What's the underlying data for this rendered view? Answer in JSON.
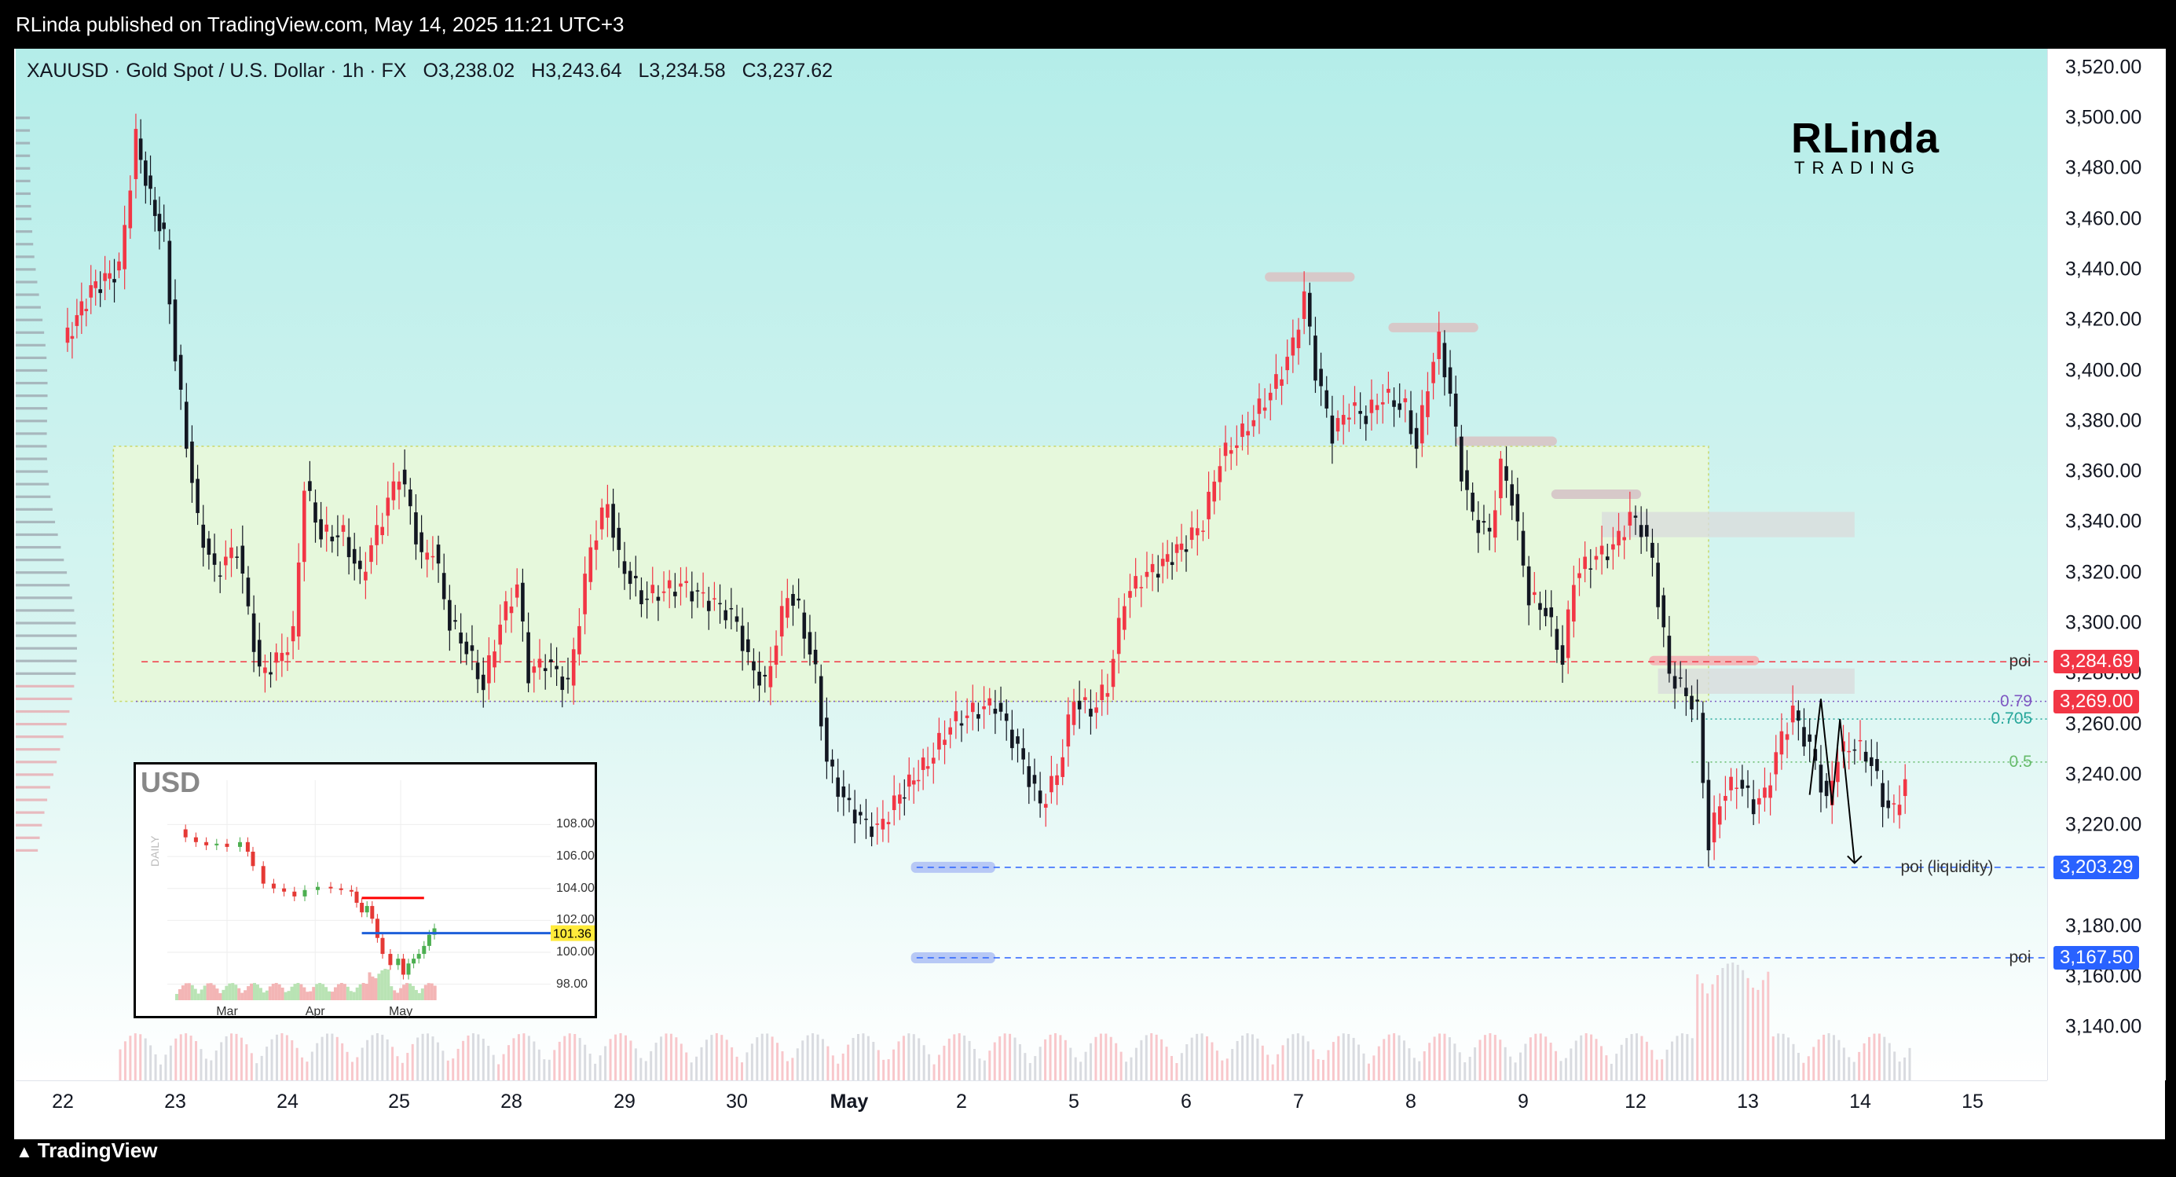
{
  "header": {
    "published": "RLinda published on TradingView.com, May 14, 2025 11:21 UTC+3"
  },
  "symbol_bar": {
    "symbol": "XAUUSD · Gold Spot / U.S. Dollar · 1h · FX",
    "open": "O3,238.02",
    "high": "H3,243.64",
    "low": "L3,234.58",
    "close": "C3,237.62"
  },
  "brand": {
    "line1": "RLinda",
    "line2": "TRADING"
  },
  "footer": {
    "logo": "TradingView"
  },
  "colors": {
    "up": "#f23645",
    "down": "#131722",
    "poi_red": "#f23645",
    "poi_blue": "#2962ff",
    "fib_purple": "#7e57c2",
    "fib_teal": "#26a69a",
    "fib_green": "#66bb6a",
    "zone_fill": "#e6f8dc"
  },
  "chart_data": {
    "type": "line",
    "title": "",
    "xlabel": "",
    "ylabel": "",
    "ylim": [
      3125,
      3530
    ],
    "y_ticks": [
      "3,520.00",
      "3,500.00",
      "3,480.00",
      "3,460.00",
      "3,440.00",
      "3,420.00",
      "3,400.00",
      "3,380.00",
      "3,360.00",
      "3,340.00",
      "3,320.00",
      "3,300.00",
      "3,280.00",
      "3,260.00",
      "3,240.00",
      "3,220.00",
      "3,180.00",
      "3,160.00",
      "3,140.00"
    ],
    "y_tick_values": [
      3520,
      3500,
      3480,
      3460,
      3440,
      3420,
      3400,
      3380,
      3360,
      3340,
      3320,
      3300,
      3280,
      3260,
      3240,
      3220,
      3180,
      3160,
      3140
    ],
    "x_ticks": [
      {
        "label": "22",
        "pos": 0
      },
      {
        "label": "23",
        "pos": 1
      },
      {
        "label": "24",
        "pos": 2
      },
      {
        "label": "25",
        "pos": 3
      },
      {
        "label": "28",
        "pos": 4
      },
      {
        "label": "29",
        "pos": 5
      },
      {
        "label": "30",
        "pos": 6
      },
      {
        "label": "May",
        "pos": 7,
        "bold": true
      },
      {
        "label": "2",
        "pos": 8
      },
      {
        "label": "5",
        "pos": 9
      },
      {
        "label": "6",
        "pos": 10
      },
      {
        "label": "7",
        "pos": 11
      },
      {
        "label": "8",
        "pos": 12
      },
      {
        "label": "9",
        "pos": 13
      },
      {
        "label": "12",
        "pos": 14
      },
      {
        "label": "13",
        "pos": 15
      },
      {
        "label": "14",
        "pos": 16
      },
      {
        "label": "15",
        "pos": 17
      }
    ],
    "series": [
      {
        "price_path": [
          [
            0.0,
            3410
          ],
          [
            0.25,
            3432
          ],
          [
            0.5,
            3440
          ],
          [
            0.65,
            3492
          ],
          [
            0.78,
            3468
          ],
          [
            0.9,
            3452
          ],
          [
            1.0,
            3405
          ],
          [
            1.1,
            3372
          ],
          [
            1.2,
            3340
          ],
          [
            1.35,
            3320
          ],
          [
            1.55,
            3330
          ],
          [
            1.75,
            3280
          ],
          [
            1.9,
            3285
          ],
          [
            2.05,
            3295
          ],
          [
            2.15,
            3355
          ],
          [
            2.3,
            3335
          ],
          [
            2.5,
            3335
          ],
          [
            2.65,
            3318
          ],
          [
            2.85,
            3342
          ],
          [
            3.0,
            3360
          ],
          [
            3.1,
            3345
          ],
          [
            3.2,
            3325
          ],
          [
            3.3,
            3330
          ],
          [
            3.45,
            3300
          ],
          [
            3.6,
            3290
          ],
          [
            3.75,
            3275
          ],
          [
            3.9,
            3300
          ],
          [
            4.05,
            3315
          ],
          [
            4.15,
            3280
          ],
          [
            4.3,
            3285
          ],
          [
            4.5,
            3275
          ],
          [
            4.7,
            3330
          ],
          [
            4.85,
            3348
          ],
          [
            4.95,
            3325
          ],
          [
            5.15,
            3310
          ],
          [
            5.3,
            3312
          ],
          [
            5.5,
            3315
          ],
          [
            5.7,
            3310
          ],
          [
            5.9,
            3305
          ],
          [
            6.0,
            3300
          ],
          [
            6.1,
            3285
          ],
          [
            6.25,
            3275
          ],
          [
            6.45,
            3312
          ],
          [
            6.55,
            3305
          ],
          [
            6.7,
            3280
          ],
          [
            6.8,
            3245
          ],
          [
            6.95,
            3230
          ],
          [
            7.1,
            3222
          ],
          [
            7.25,
            3218
          ],
          [
            7.45,
            3232
          ],
          [
            7.7,
            3245
          ],
          [
            7.9,
            3260
          ],
          [
            8.1,
            3265
          ],
          [
            8.3,
            3268
          ],
          [
            8.5,
            3250
          ],
          [
            8.7,
            3228
          ],
          [
            8.85,
            3240
          ],
          [
            9.0,
            3270
          ],
          [
            9.15,
            3265
          ],
          [
            9.3,
            3275
          ],
          [
            9.45,
            3310
          ],
          [
            9.6,
            3318
          ],
          [
            9.75,
            3322
          ],
          [
            10.0,
            3332
          ],
          [
            10.15,
            3340
          ],
          [
            10.3,
            3365
          ],
          [
            10.5,
            3375
          ],
          [
            10.65,
            3385
          ],
          [
            10.8,
            3395
          ],
          [
            10.95,
            3410
          ],
          [
            11.05,
            3430
          ],
          [
            11.15,
            3400
          ],
          [
            11.3,
            3375
          ],
          [
            11.45,
            3385
          ],
          [
            11.6,
            3382
          ],
          [
            11.75,
            3390
          ],
          [
            11.95,
            3385
          ],
          [
            12.05,
            3370
          ],
          [
            12.15,
            3395
          ],
          [
            12.25,
            3412
          ],
          [
            12.35,
            3390
          ],
          [
            12.45,
            3360
          ],
          [
            12.55,
            3342
          ],
          [
            12.7,
            3335
          ],
          [
            12.8,
            3362
          ],
          [
            12.9,
            3350
          ],
          [
            13.05,
            3310
          ],
          [
            13.2,
            3305
          ],
          [
            13.35,
            3285
          ],
          [
            13.45,
            3318
          ],
          [
            13.6,
            3325
          ],
          [
            13.8,
            3330
          ],
          [
            13.95,
            3342
          ],
          [
            14.05,
            3338
          ],
          [
            14.15,
            3325
          ],
          [
            14.3,
            3280
          ],
          [
            14.45,
            3272
          ],
          [
            14.55,
            3265
          ],
          [
            14.65,
            3212
          ],
          [
            14.75,
            3230
          ],
          [
            14.9,
            3238
          ],
          [
            15.05,
            3228
          ],
          [
            15.15,
            3232
          ],
          [
            15.3,
            3255
          ],
          [
            15.4,
            3265
          ],
          [
            15.5,
            3255
          ],
          [
            15.6,
            3245
          ],
          [
            15.7,
            3228
          ],
          [
            15.8,
            3248
          ],
          [
            15.95,
            3252
          ],
          [
            16.1,
            3245
          ],
          [
            16.2,
            3230
          ],
          [
            16.3,
            3225
          ],
          [
            16.4,
            3238
          ]
        ]
      }
    ]
  },
  "levels": [
    {
      "name": "poi",
      "price": 3284.69,
      "tag": "3,284.69",
      "style": "red"
    },
    {
      "name": "0.79",
      "price": 3269.0,
      "tag": "3,269.00",
      "style": "purple"
    },
    {
      "name": "0.705",
      "price": 3262,
      "tag": "",
      "style": "teal"
    },
    {
      "name": "0.5",
      "price": 3245,
      "tag": "",
      "style": "green"
    },
    {
      "name": "poi (liquidity)",
      "price": 3203.29,
      "tag": "3,203.29",
      "style": "blue"
    },
    {
      "name": "poi",
      "price": 3167.5,
      "tag": "3,167.50",
      "style": "blue"
    }
  ],
  "inset": {
    "title": "USD",
    "axis_side": "DAILY",
    "last_price": "101.36",
    "y_ticks": [
      "108.00",
      "106.00",
      "104.00",
      "102.00",
      "100.00",
      "98.00"
    ],
    "y_tick_values": [
      108,
      106,
      104,
      102,
      100,
      98
    ],
    "ylim": [
      97,
      109.3
    ],
    "x_ticks": [
      "Mar",
      "Apr",
      "May"
    ],
    "path": [
      [
        0,
        107.7
      ],
      [
        0.04,
        107.2
      ],
      [
        0.08,
        106.9
      ],
      [
        0.12,
        106.7
      ],
      [
        0.16,
        106.8
      ],
      [
        0.2,
        106.6
      ],
      [
        0.25,
        106.9
      ],
      [
        0.28,
        106.3
      ],
      [
        0.3,
        105.4
      ],
      [
        0.34,
        104.3
      ],
      [
        0.38,
        104.0
      ],
      [
        0.42,
        103.8
      ],
      [
        0.46,
        103.5
      ],
      [
        0.5,
        103.9
      ],
      [
        0.55,
        104.1
      ],
      [
        0.6,
        104.0
      ],
      [
        0.64,
        103.9
      ],
      [
        0.68,
        103.8
      ],
      [
        0.7,
        103.1
      ],
      [
        0.72,
        102.5
      ],
      [
        0.74,
        102.9
      ],
      [
        0.76,
        102.1
      ],
      [
        0.78,
        100.9
      ],
      [
        0.8,
        99.9
      ],
      [
        0.83,
        99.2
      ],
      [
        0.86,
        99.6
      ],
      [
        0.88,
        98.6
      ],
      [
        0.9,
        99.3
      ],
      [
        0.92,
        99.6
      ],
      [
        0.94,
        99.9
      ],
      [
        0.96,
        100.4
      ],
      [
        0.98,
        101.1
      ],
      [
        1.0,
        101.5
      ]
    ]
  }
}
